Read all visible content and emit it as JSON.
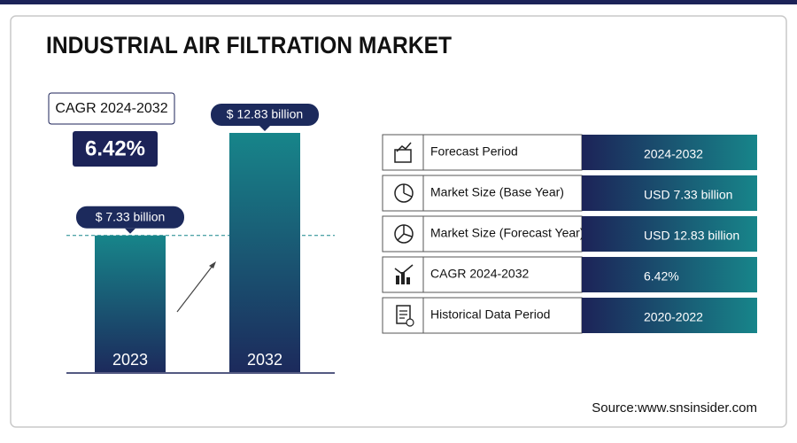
{
  "title": "INDUSTRIAL AIR FILTRATION MARKET",
  "cagr": {
    "label": "CAGR 2024-2032",
    "value": "6.42%"
  },
  "chart_data": {
    "type": "bar",
    "categories": [
      "2023",
      "2032"
    ],
    "values": [
      7.33,
      12.83
    ],
    "value_labels": [
      "$ 7.33 billion",
      "$ 12.83 billion"
    ],
    "color": "#17858a"
  },
  "table": {
    "rows": [
      [
        "Forecast Period",
        "2024-2032"
      ],
      [
        "Market Size (Base Year)",
        "USD 7.33 billion"
      ],
      [
        "Market Size (Forecast Year)",
        "USD 12.83 billion"
      ],
      [
        "CAGR 2024-2032",
        "6.42%"
      ],
      [
        "Historical Data Period",
        "2020-2022"
      ]
    ]
  },
  "source": "Source:www.snsinsider.com"
}
